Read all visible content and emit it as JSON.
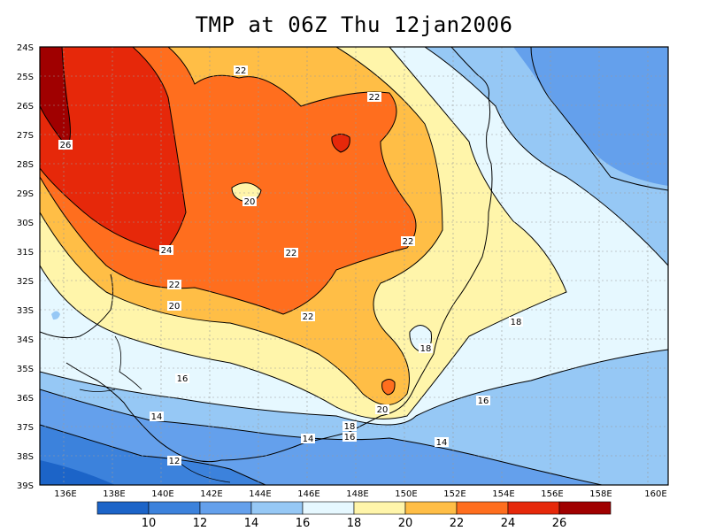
{
  "title": "TMP at 06Z Thu 12jan2006",
  "lat_ticks": [
    "24S",
    "25S",
    "26S",
    "27S",
    "28S",
    "29S",
    "30S",
    "31S",
    "32S",
    "33S",
    "34S",
    "35S",
    "36S",
    "37S",
    "38S",
    "39S"
  ],
  "lon_ticks": [
    "136E",
    "138E",
    "140E",
    "142E",
    "144E",
    "146E",
    "148E",
    "150E",
    "152E",
    "154E",
    "156E",
    "158E",
    "160E"
  ],
  "contour_labels": [
    "26",
    "24",
    "22",
    "22",
    "22",
    "22",
    "22",
    "22",
    "20",
    "20",
    "20",
    "18",
    "18",
    "18",
    "16",
    "16",
    "16",
    "14",
    "14",
    "14",
    "12"
  ],
  "colorbar": {
    "labels": [
      "10",
      "12",
      "14",
      "16",
      "18",
      "20",
      "22",
      "24",
      "26"
    ],
    "colors": [
      "#1c64c8",
      "#3c82dc",
      "#64a0ec",
      "#96c8f5",
      "#e6f8ff",
      "#fff5aa",
      "#ffbe46",
      "#ff6e1e",
      "#e6280a",
      "#a00000"
    ]
  }
}
